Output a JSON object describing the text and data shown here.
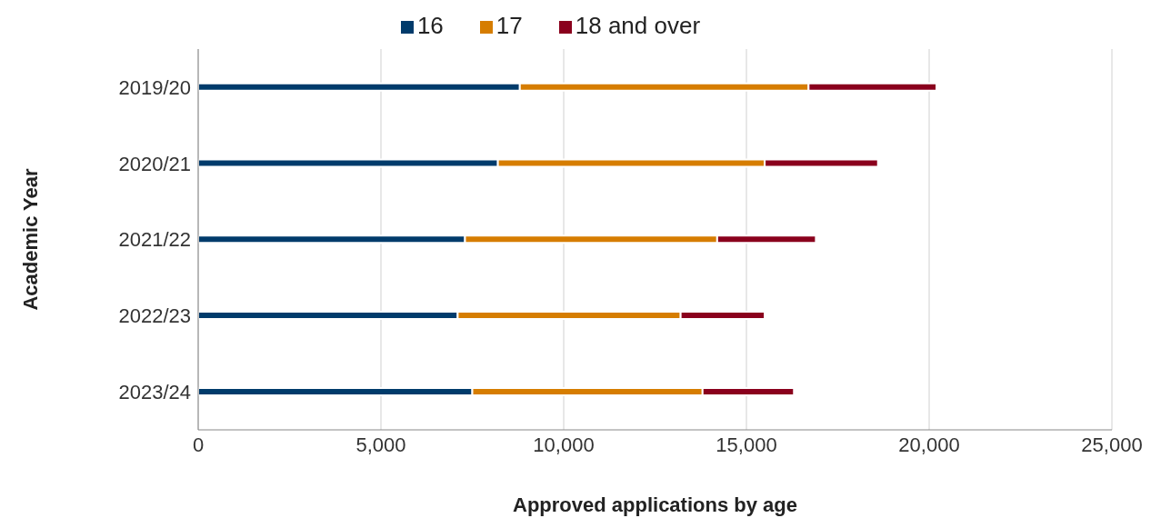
{
  "chart_data": {
    "type": "bar",
    "orientation": "horizontal",
    "stacked": true,
    "xlabel": "Approved applications by age",
    "ylabel": "Academic Year",
    "categories": [
      "2019/20",
      "2020/21",
      "2021/22",
      "2022/23",
      "2023/24"
    ],
    "series": [
      {
        "name": "16",
        "color": "#003b6b",
        "values": [
          8800,
          8200,
          7300,
          7100,
          7500
        ]
      },
      {
        "name": "17",
        "color": "#d67d00",
        "values": [
          7900,
          7300,
          6900,
          6100,
          6300
        ]
      },
      {
        "name": "18 and over",
        "color": "#8a001d",
        "values": [
          3500,
          3100,
          2700,
          2300,
          2500
        ]
      }
    ],
    "xlim": [
      0,
      25000
    ],
    "xticks": [
      {
        "value": 0,
        "label": "0"
      },
      {
        "value": 5000,
        "label": "5,000"
      },
      {
        "value": 10000,
        "label": "10,000"
      },
      {
        "value": 15000,
        "label": "15,000"
      },
      {
        "value": 20000,
        "label": "20,000"
      },
      {
        "value": 25000,
        "label": "25,000"
      }
    ],
    "grid": "x",
    "legend": "top"
  }
}
